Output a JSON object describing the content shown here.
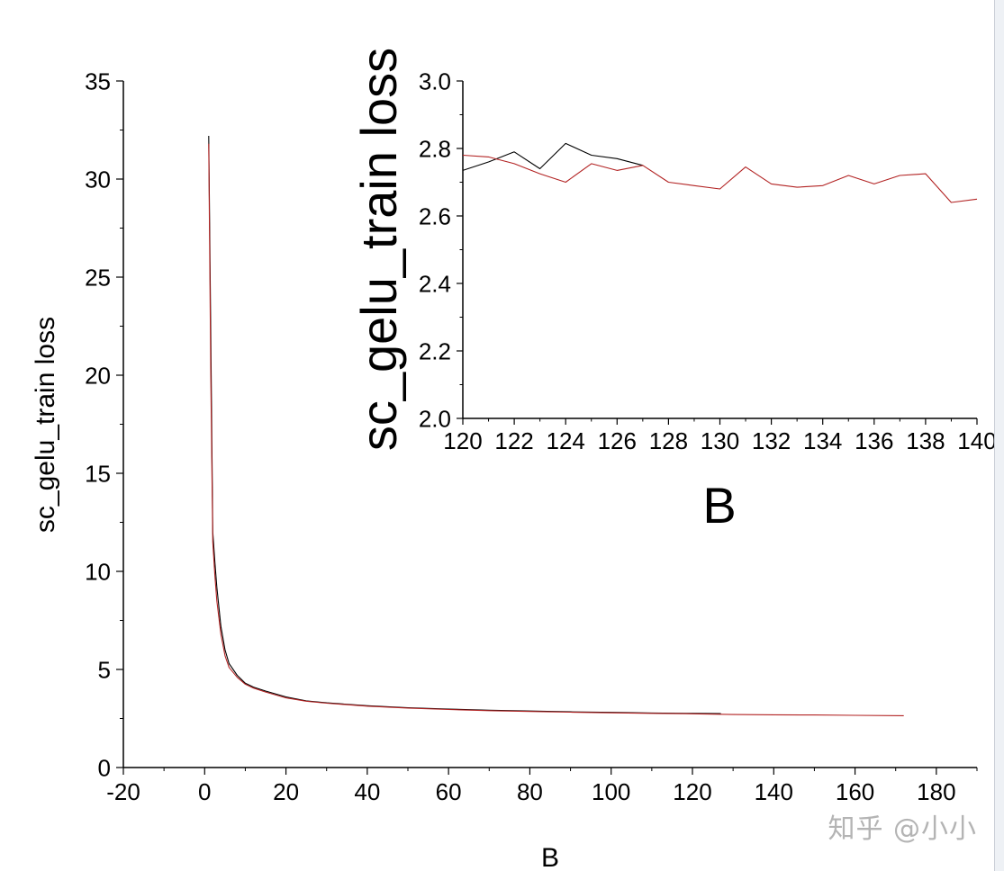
{
  "watermark": "知乎 @小小",
  "chart_data": [
    {
      "type": "line",
      "xlabel": "B",
      "ylabel": "sc_gelu_train loss",
      "xlim": [
        -20,
        190
      ],
      "ylim": [
        0,
        35
      ],
      "xticks": [
        "-20",
        "0",
        "20",
        "40",
        "60",
        "80",
        "100",
        "120",
        "140",
        "160",
        "180"
      ],
      "yticks": [
        "0",
        "5",
        "10",
        "15",
        "20",
        "25",
        "30",
        "35"
      ],
      "grid": false,
      "legend": "none",
      "series": [
        {
          "color": "#000000",
          "x": [
            1,
            1.5,
            2,
            2.5,
            3,
            4,
            5,
            6,
            8,
            10,
            12,
            15,
            20,
            25,
            30,
            40,
            50,
            60,
            70,
            80,
            90,
            100,
            110,
            120,
            127
          ],
          "y": [
            32.2,
            22,
            12,
            10.5,
            9.2,
            7.2,
            6.0,
            5.3,
            4.7,
            4.3,
            4.1,
            3.9,
            3.6,
            3.4,
            3.3,
            3.15,
            3.05,
            2.98,
            2.92,
            2.88,
            2.84,
            2.81,
            2.78,
            2.76,
            2.75
          ]
        },
        {
          "color": "#b22222",
          "x": [
            1,
            1.5,
            2,
            2.5,
            3,
            4,
            5,
            6,
            8,
            10,
            12,
            15,
            20,
            25,
            30,
            40,
            50,
            60,
            70,
            80,
            90,
            100,
            110,
            120,
            130,
            140,
            150,
            160,
            172
          ],
          "y": [
            31.8,
            20,
            11.5,
            9.8,
            8.5,
            6.8,
            5.7,
            5.1,
            4.6,
            4.25,
            4.05,
            3.85,
            3.55,
            3.38,
            3.28,
            3.13,
            3.03,
            2.96,
            2.9,
            2.86,
            2.82,
            2.79,
            2.76,
            2.74,
            2.7,
            2.69,
            2.68,
            2.66,
            2.64
          ]
        }
      ]
    },
    {
      "type": "line",
      "inset": true,
      "xlabel": "B",
      "ylabel": "sc_gelu_train loss",
      "xlim": [
        120,
        140
      ],
      "ylim": [
        2.0,
        3.0
      ],
      "xticks": [
        "120",
        "122",
        "124",
        "126",
        "128",
        "130",
        "132",
        "134",
        "136",
        "138",
        "140"
      ],
      "yticks": [
        "2.0",
        "2.2",
        "2.4",
        "2.6",
        "2.8",
        "3.0"
      ],
      "grid": false,
      "legend": "none",
      "series": [
        {
          "color": "#000000",
          "x": [
            120,
            121,
            122,
            123,
            124,
            125,
            126,
            127
          ],
          "y": [
            2.735,
            2.76,
            2.79,
            2.74,
            2.815,
            2.78,
            2.77,
            2.75
          ]
        },
        {
          "color": "#b22222",
          "x": [
            120,
            121,
            122,
            123,
            124,
            125,
            126,
            127,
            128,
            129,
            130,
            131,
            132,
            133,
            134,
            135,
            136,
            137,
            138,
            139,
            140
          ],
          "y": [
            2.78,
            2.775,
            2.755,
            2.725,
            2.7,
            2.755,
            2.735,
            2.75,
            2.7,
            2.69,
            2.68,
            2.745,
            2.695,
            2.685,
            2.69,
            2.72,
            2.695,
            2.72,
            2.725,
            2.64,
            2.65
          ]
        }
      ]
    }
  ]
}
